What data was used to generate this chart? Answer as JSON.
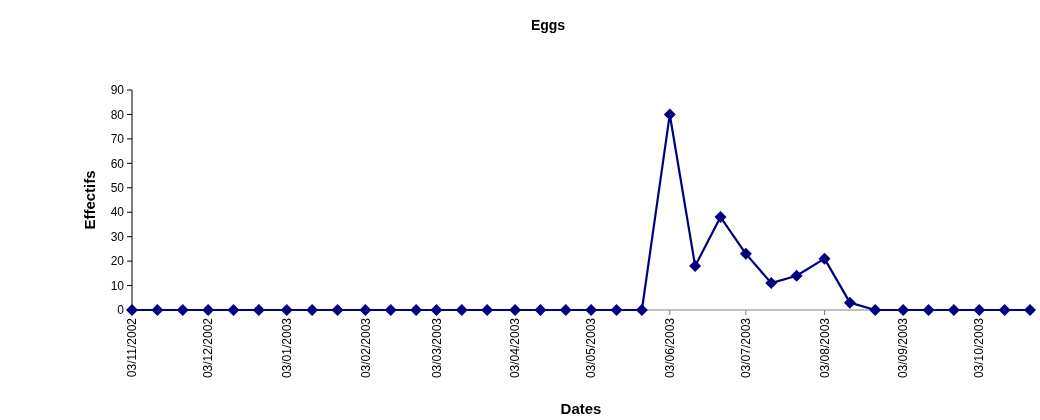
{
  "chart_data": {
    "type": "line",
    "title": "Eggs",
    "xlabel": "Dates",
    "ylabel": "Effectifs",
    "x": [
      "2002-11-03",
      "2002-11-13",
      "2002-11-23",
      "2002-12-03",
      "2002-12-13",
      "2002-12-23",
      "2003-01-03",
      "2003-01-13",
      "2003-01-23",
      "2003-02-03",
      "2003-02-13",
      "2003-02-23",
      "2003-03-03",
      "2003-03-13",
      "2003-03-23",
      "2003-04-03",
      "2003-04-13",
      "2003-04-23",
      "2003-05-03",
      "2003-05-13",
      "2003-05-23",
      "2003-06-03",
      "2003-06-13",
      "2003-06-23",
      "2003-07-03",
      "2003-07-13",
      "2003-07-23",
      "2003-08-03",
      "2003-08-13",
      "2003-08-23",
      "2003-09-03",
      "2003-09-13",
      "2003-09-23",
      "2003-10-03",
      "2003-10-13",
      "2003-10-23"
    ],
    "series": [
      {
        "color": "#000080",
        "values": [
          0,
          0,
          0,
          0,
          0,
          0,
          0,
          0,
          0,
          0,
          0,
          0,
          0,
          0,
          0,
          0,
          0,
          0,
          0,
          0,
          0,
          80,
          18,
          38,
          23,
          11,
          14,
          21,
          3,
          0,
          0,
          0,
          0,
          0,
          0,
          0
        ]
      }
    ],
    "xlim": [
      "2002-11-03",
      "2003-10-23"
    ],
    "xticks": [
      {
        "value": "2002-11-03",
        "label": "03/11/2002"
      },
      {
        "value": "2002-12-03",
        "label": "03/12/2002"
      },
      {
        "value": "2003-01-03",
        "label": "03/01/2003"
      },
      {
        "value": "2003-02-03",
        "label": "03/02/2003"
      },
      {
        "value": "2003-03-03",
        "label": "03/03/2003"
      },
      {
        "value": "2003-04-03",
        "label": "03/04/2003"
      },
      {
        "value": "2003-05-03",
        "label": "03/05/2003"
      },
      {
        "value": "2003-06-03",
        "label": "03/06/2003"
      },
      {
        "value": "2003-07-03",
        "label": "03/07/2003"
      },
      {
        "value": "2003-08-03",
        "label": "03/08/2003"
      },
      {
        "value": "2003-09-03",
        "label": "03/09/2003"
      },
      {
        "value": "2003-10-03",
        "label": "03/10/2003"
      }
    ],
    "ylim": [
      0,
      90
    ],
    "yticks": [
      0,
      10,
      20,
      30,
      40,
      50,
      60,
      70,
      80,
      90
    ],
    "marker": "diamond"
  }
}
